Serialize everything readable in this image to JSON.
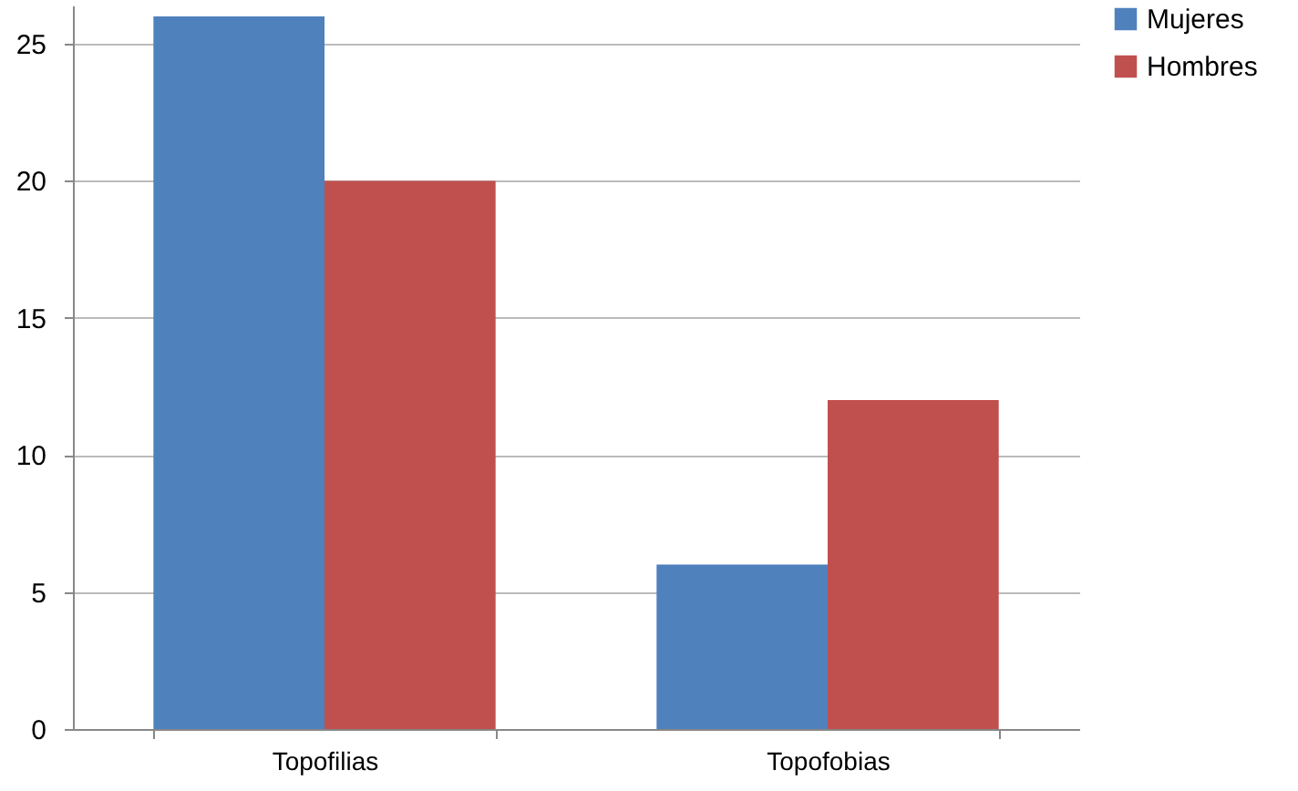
{
  "chart_data": {
    "type": "bar",
    "categories": [
      "Topofilias",
      "Topofobias"
    ],
    "series": [
      {
        "name": "Mujeres",
        "color": "#4f81bd",
        "values": [
          26,
          6
        ]
      },
      {
        "name": "Hombres",
        "color": "#c0504d",
        "values": [
          20,
          12
        ]
      }
    ],
    "ylim": [
      0,
      26.4
    ],
    "yticks": [
      0,
      5,
      10,
      15,
      20,
      25
    ],
    "grid": "y",
    "legend": "right"
  }
}
